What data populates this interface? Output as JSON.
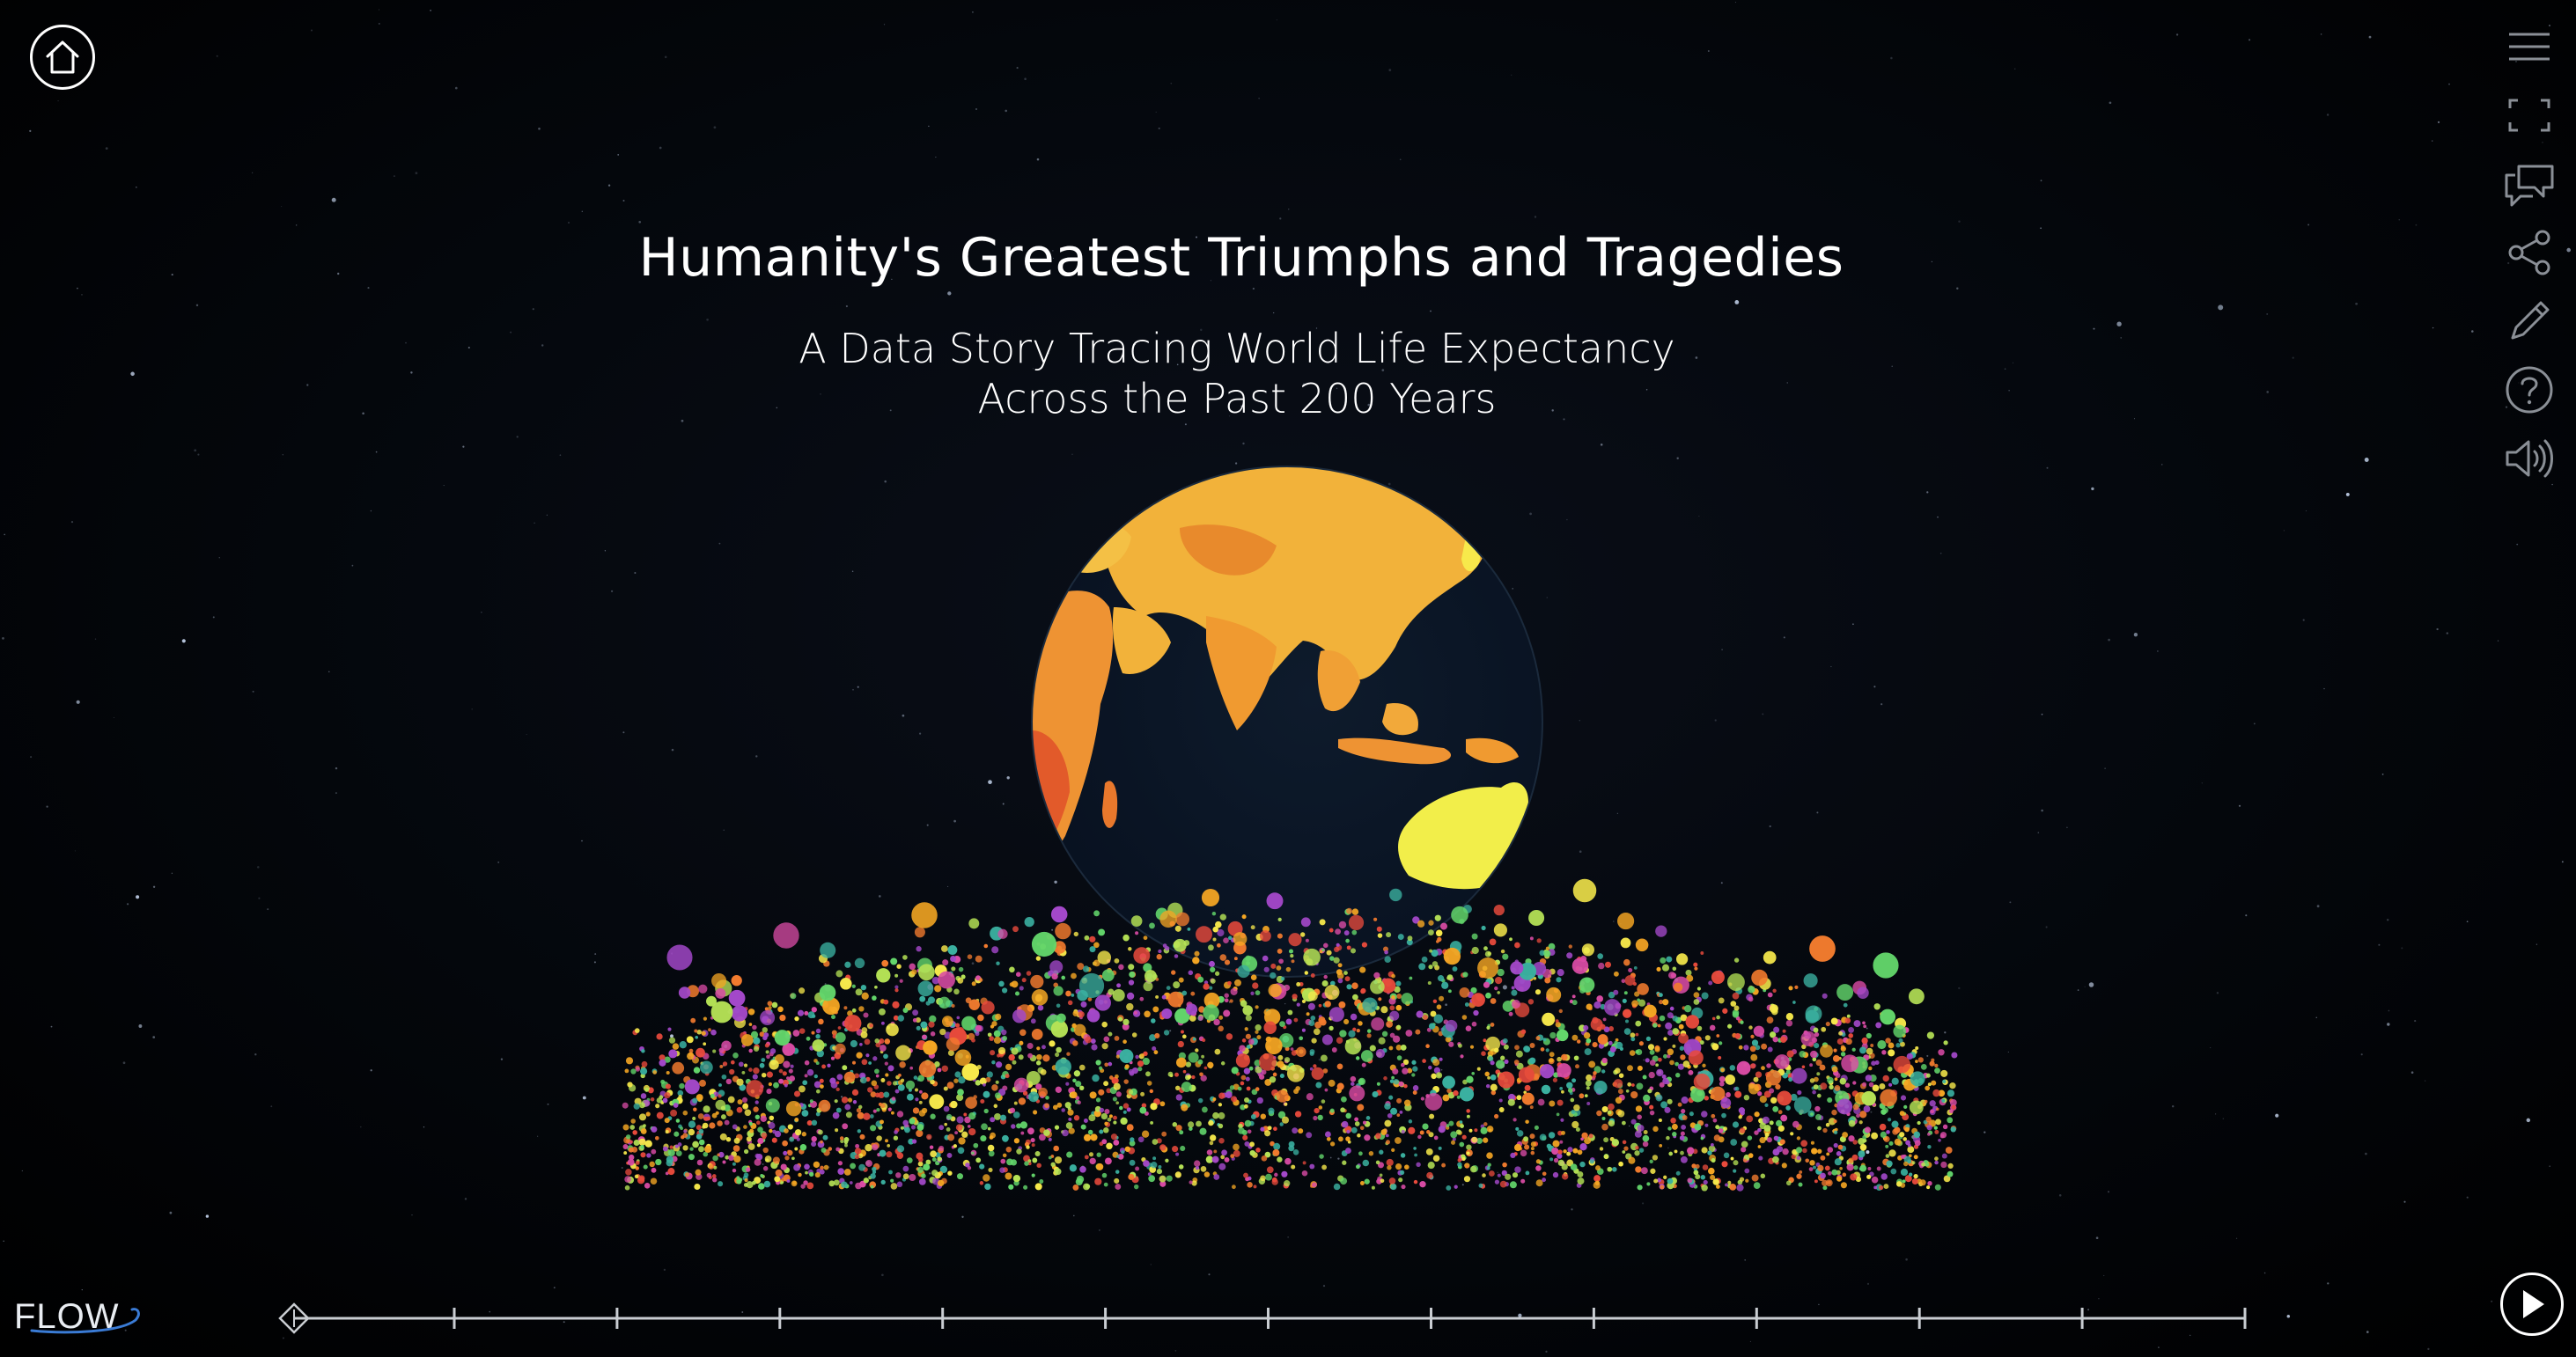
{
  "story": {
    "title": "Humanity's Greatest Triumphs and Tragedies",
    "subtitle_line1": "A Data Story Tracing World Life Expectancy",
    "subtitle_line2": "Across the Past 200 Years"
  },
  "toolbar": {
    "home_icon": "home-icon",
    "tools": [
      {
        "name": "menu-icon"
      },
      {
        "name": "fullscreen-icon"
      },
      {
        "name": "comments-icon"
      },
      {
        "name": "share-icon"
      },
      {
        "name": "edit-icon"
      },
      {
        "name": "help-icon"
      },
      {
        "name": "sound-icon"
      }
    ]
  },
  "brand": {
    "logo_text": "FLOW"
  },
  "timeline": {
    "tick_count": 12
  },
  "playback": {
    "icon": "play-icon"
  },
  "colors": {
    "background": "#000000",
    "ocean": "#0b1626",
    "land_light": "#f2e84a",
    "land_mid": "#f2a93a",
    "land_dark": "#e8782c",
    "ui_stroke": "#ffffff",
    "logo_accent": "#3a7bd5"
  },
  "particles": {
    "palette": [
      "#e84a3c",
      "#f5a623",
      "#f7e94b",
      "#63d66b",
      "#3ab0a0",
      "#a348c9",
      "#d94ba5",
      "#f27b2e",
      "#b6e356"
    ]
  }
}
